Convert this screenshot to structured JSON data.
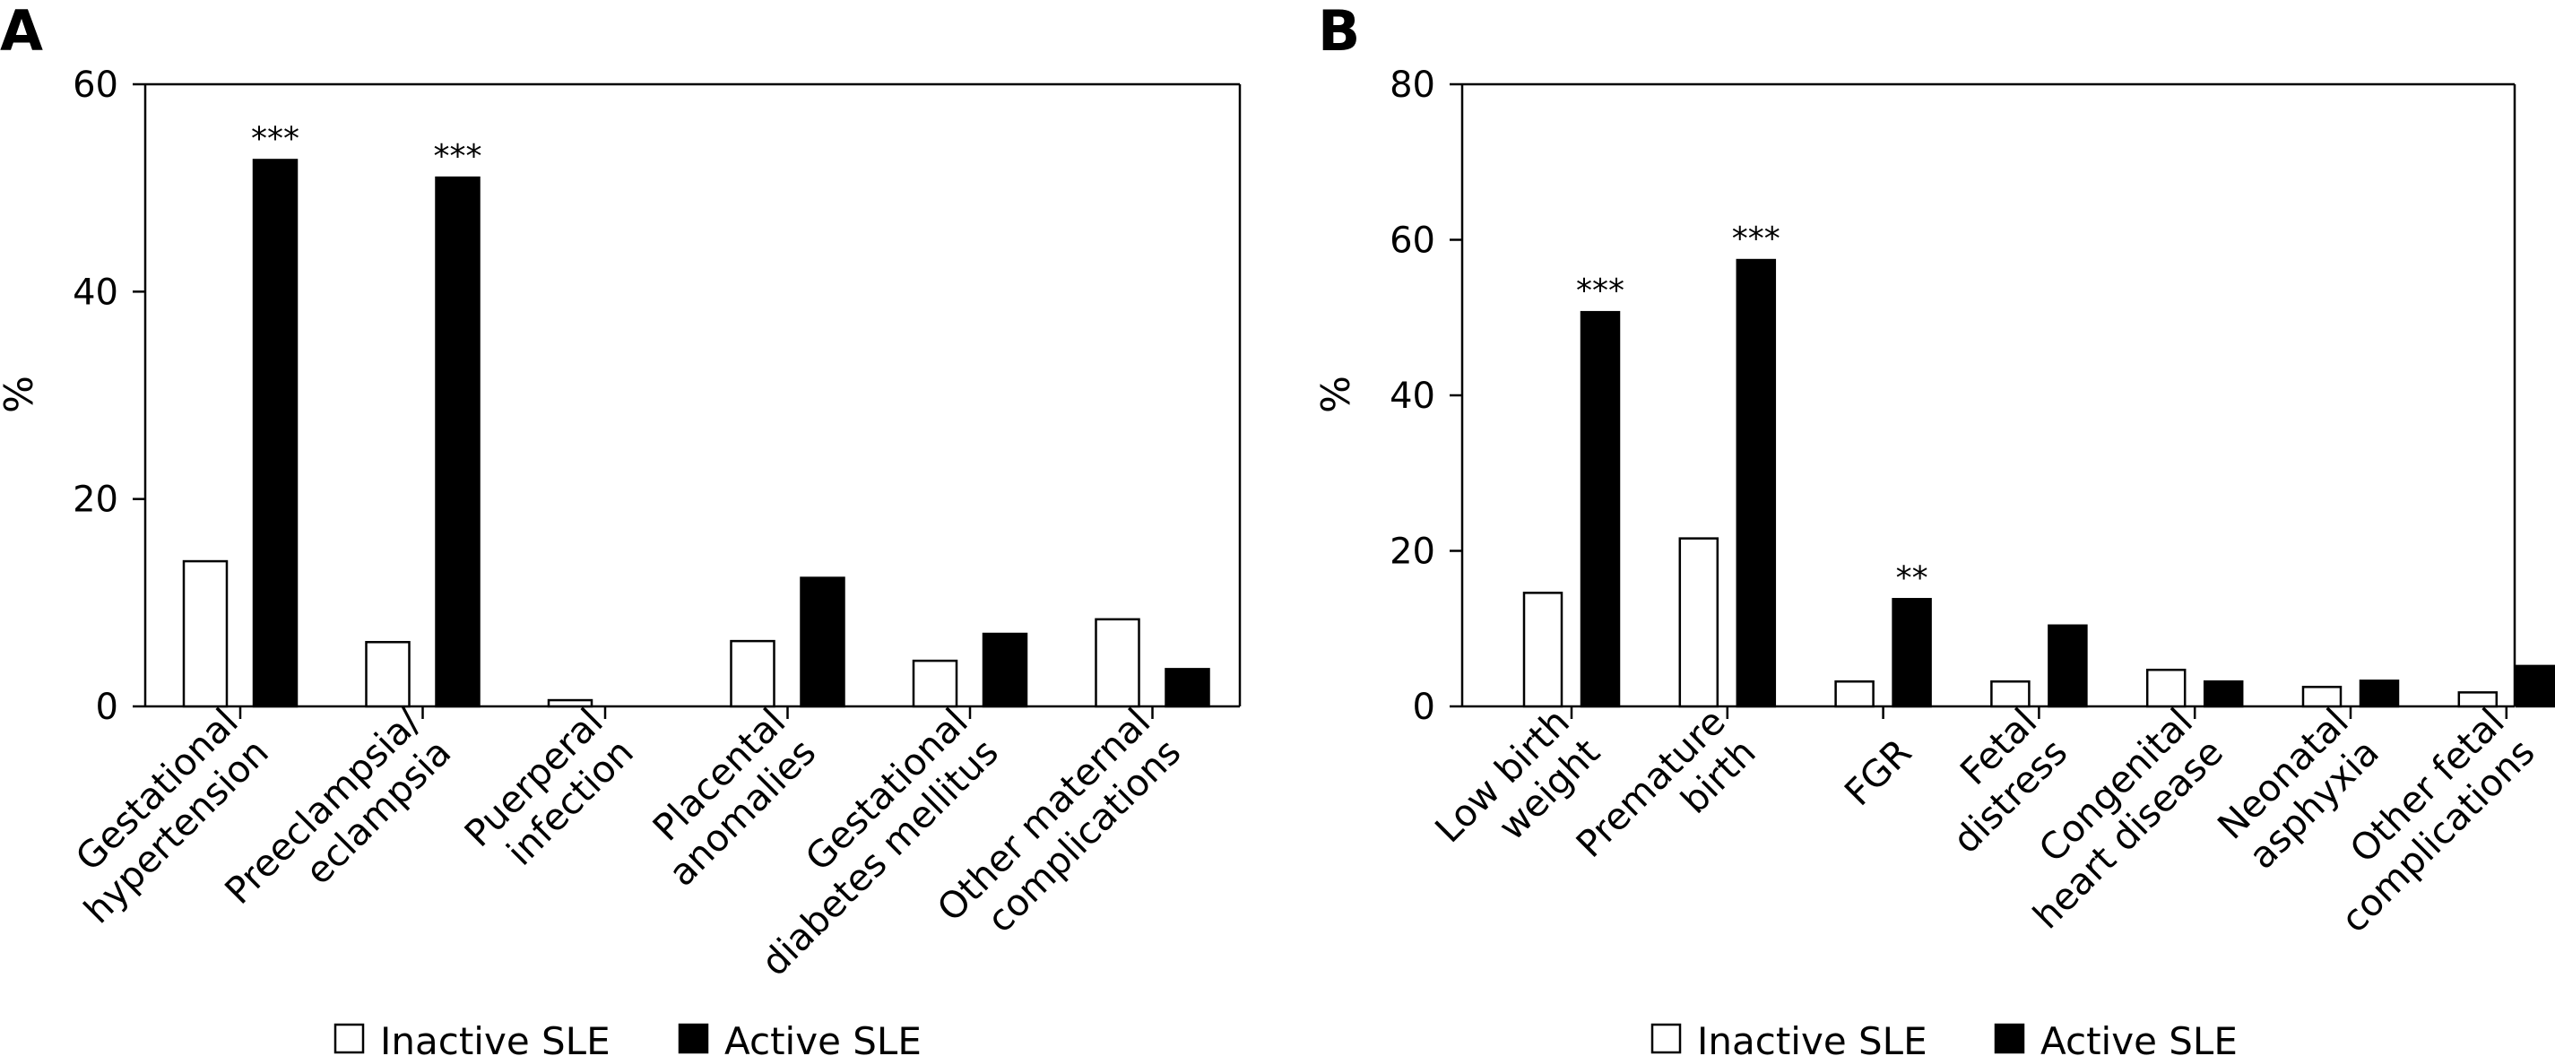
{
  "colors": {
    "inactive": "#ffffff",
    "active": "#000000",
    "axis": "#000000"
  },
  "legend": [
    {
      "name": "Inactive SLE",
      "color": "#ffffff"
    },
    {
      "name": "Active SLE",
      "color": "#000000"
    }
  ],
  "chart_data": [
    {
      "panel": "A",
      "type": "bar",
      "ylabel": "%",
      "ylim": [
        0,
        60
      ],
      "yticks": [
        0,
        20,
        40,
        60
      ],
      "categories": [
        [
          "Gestational",
          "hypertension"
        ],
        [
          "Preeclampsia/",
          "eclampsia"
        ],
        [
          "Puerperal",
          "infection"
        ],
        [
          "Placental",
          "anomalies"
        ],
        [
          "Gestational",
          "diabetes mellitus"
        ],
        [
          "Other maternal",
          "complications"
        ]
      ],
      "series": [
        {
          "name": "Inactive SLE",
          "values": [
            14.0,
            6.2,
            0.6,
            6.3,
            4.4,
            8.4
          ]
        },
        {
          "name": "Active SLE",
          "values": [
            52.7,
            51.0,
            0,
            12.4,
            7.0,
            3.6
          ]
        }
      ],
      "annotations": [
        "***",
        "***",
        "",
        "",
        "",
        ""
      ]
    },
    {
      "panel": "B",
      "type": "bar",
      "ylabel": "%",
      "ylim": [
        0,
        80
      ],
      "yticks": [
        0,
        20,
        40,
        60,
        80
      ],
      "categories": [
        [
          "Low birth",
          "weight"
        ],
        [
          "Premature",
          "birth"
        ],
        [
          "FGR"
        ],
        [
          "Fetal",
          "distress"
        ],
        [
          "Congenital",
          "heart disease"
        ],
        [
          "Neonatal",
          "asphyxia"
        ],
        [
          "Other fetal",
          "complications"
        ]
      ],
      "series": [
        {
          "name": "Inactive SLE",
          "values": [
            14.6,
            21.6,
            3.2,
            3.2,
            4.7,
            2.5,
            1.8
          ]
        },
        {
          "name": "Active SLE",
          "values": [
            50.7,
            57.4,
            13.8,
            10.4,
            3.2,
            3.3,
            5.2
          ]
        }
      ],
      "annotations": [
        "***",
        "***",
        "**",
        "",
        "",
        "",
        ""
      ]
    }
  ]
}
